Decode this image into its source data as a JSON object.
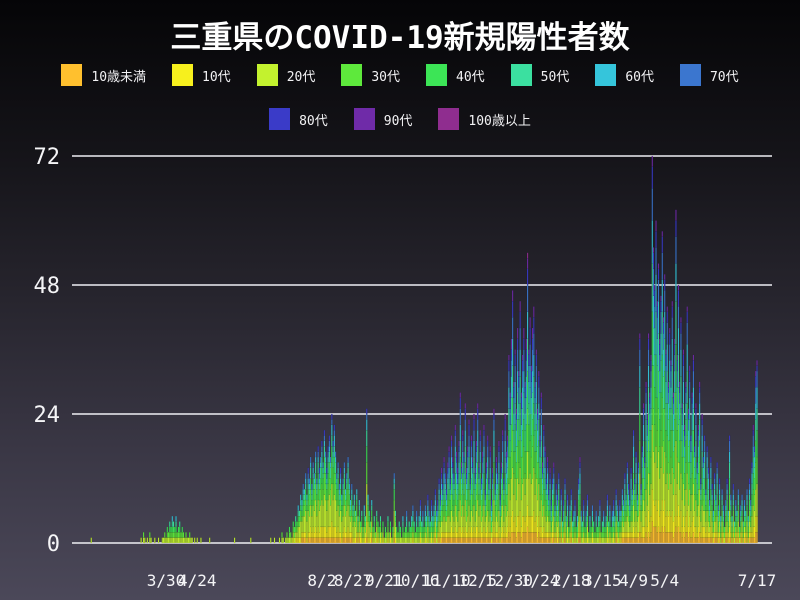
{
  "chart_data": {
    "type": "bar",
    "stacked": true,
    "title": "三重県のCOVID-19新規陽性者数",
    "xlabel": "",
    "ylabel": "",
    "ylim": [
      0,
      72
    ],
    "y_ticks": [
      0,
      24,
      48,
      72
    ],
    "grid": "horizontal-white-lines",
    "legend_position": "top",
    "background": {
      "top": "#050507",
      "bottom": "#4b4859"
    },
    "grid_color": "#efeff4",
    "text_color": "#f5f5f7",
    "series_labels": [
      "10歳未満",
      "10代",
      "20代",
      "30代",
      "40代",
      "50代",
      "60代",
      "70代",
      "80代",
      "90代",
      "100歳以上"
    ],
    "series_colors": [
      "#ffc02e",
      "#f7f01d",
      "#c3f22e",
      "#5ee93c",
      "#3ce556",
      "#3be0a0",
      "#35c5db",
      "#3b76cf",
      "#3a3bc8",
      "#6f2ba8",
      "#8f2d8f"
    ],
    "legend_rows": [
      [
        0,
        1,
        2,
        3,
        4,
        5,
        6,
        7
      ],
      [
        8,
        9,
        10
      ]
    ],
    "x_ticks": [
      {
        "day": 65,
        "label": "3/30"
      },
      {
        "day": 90,
        "label": "4/24"
      },
      {
        "day": 190,
        "label": "8/2"
      },
      {
        "day": 215,
        "label": "8/27"
      },
      {
        "day": 240,
        "label": "9/21"
      },
      {
        "day": 265,
        "label": "10/16"
      },
      {
        "day": 290,
        "label": "11/10"
      },
      {
        "day": 315,
        "label": "12/5"
      },
      {
        "day": 340,
        "label": "12/30"
      },
      {
        "day": 365,
        "label": "1/24"
      },
      {
        "day": 390,
        "label": "2/18"
      },
      {
        "day": 415,
        "label": "3/15"
      },
      {
        "day": 440,
        "label": "4/9"
      },
      {
        "day": 465,
        "label": "5/4"
      },
      {
        "day": 539,
        "label": "7/17"
      }
    ],
    "daily_totals": [
      0,
      0,
      0,
      0,
      0,
      1,
      0,
      0,
      0,
      0,
      0,
      0,
      0,
      0,
      0,
      0,
      0,
      0,
      0,
      0,
      0,
      0,
      0,
      0,
      0,
      0,
      0,
      0,
      0,
      0,
      0,
      0,
      0,
      0,
      0,
      0,
      0,
      0,
      0,
      0,
      0,
      0,
      0,
      0,
      0,
      1,
      0,
      2,
      1,
      0,
      1,
      0,
      2,
      1,
      0,
      0,
      1,
      0,
      0,
      1,
      0,
      0,
      1,
      1,
      2,
      1,
      3,
      2,
      4,
      3,
      5,
      4,
      3,
      5,
      2,
      3,
      4,
      2,
      3,
      2,
      1,
      2,
      1,
      1,
      2,
      1,
      1,
      0,
      1,
      0,
      1,
      0,
      0,
      1,
      0,
      0,
      0,
      0,
      0,
      0,
      1,
      0,
      0,
      0,
      0,
      0,
      0,
      0,
      0,
      0,
      0,
      0,
      0,
      0,
      0,
      0,
      0,
      0,
      0,
      0,
      1,
      0,
      0,
      0,
      0,
      0,
      0,
      0,
      0,
      0,
      0,
      0,
      0,
      1,
      0,
      0,
      0,
      0,
      0,
      0,
      0,
      0,
      0,
      0,
      0,
      0,
      0,
      0,
      0,
      1,
      0,
      0,
      1,
      0,
      0,
      0,
      1,
      0,
      2,
      1,
      0,
      1,
      2,
      1,
      3,
      2,
      1,
      4,
      3,
      5,
      4,
      7,
      6,
      9,
      8,
      11,
      10,
      13,
      9,
      14,
      12,
      16,
      11,
      15,
      13,
      17,
      12,
      18,
      14,
      16,
      19,
      15,
      21,
      17,
      14,
      18,
      20,
      16,
      24,
      19,
      22,
      17,
      13,
      15,
      11,
      14,
      9,
      12,
      15,
      10,
      13,
      16,
      12,
      8,
      11,
      7,
      9,
      6,
      10,
      5,
      8,
      4,
      6,
      3,
      7,
      5,
      25,
      9,
      6,
      4,
      8,
      3,
      5,
      2,
      6,
      4,
      3,
      5,
      2,
      4,
      1,
      3,
      2,
      5,
      2,
      4,
      1,
      3,
      13,
      6,
      3,
      2,
      4,
      3,
      1,
      5,
      2,
      3,
      6,
      2,
      4,
      3,
      5,
      7,
      4,
      2,
      6,
      3,
      5,
      8,
      4,
      6,
      3,
      7,
      5,
      9,
      6,
      4,
      8,
      5,
      7,
      10,
      6,
      8,
      12,
      9,
      14,
      11,
      16,
      13,
      10,
      15,
      18,
      12,
      20,
      16,
      13,
      22,
      17,
      14,
      19,
      28,
      15,
      21,
      17,
      26,
      14,
      18,
      23,
      12,
      20,
      16,
      24,
      14,
      19,
      26,
      15,
      21,
      12,
      17,
      22,
      10,
      15,
      20,
      12,
      18,
      8,
      14,
      25,
      11,
      16,
      13,
      19,
      9,
      15,
      21,
      12,
      24,
      17,
      20,
      35,
      28,
      38,
      47,
      30,
      36,
      25,
      40,
      32,
      45,
      28,
      35,
      40,
      30,
      38,
      54,
      36,
      42,
      33,
      40,
      44,
      30,
      36,
      25,
      32,
      20,
      28,
      15,
      22,
      18,
      12,
      16,
      10,
      14,
      8,
      12,
      15,
      7,
      11,
      9,
      13,
      6,
      10,
      4,
      8,
      12,
      5,
      9,
      3,
      7,
      10,
      4,
      6,
      8,
      3,
      5,
      12,
      16,
      6,
      4,
      8,
      3,
      6,
      9,
      2,
      5,
      3,
      7,
      4,
      2,
      6,
      3,
      5,
      8,
      2,
      4,
      6,
      3,
      5,
      9,
      4,
      7,
      3,
      6,
      8,
      5,
      10,
      7,
      4,
      8,
      6,
      10,
      8,
      13,
      9,
      15,
      11,
      8,
      14,
      10,
      21,
      12,
      17,
      9,
      15,
      39,
      11,
      18,
      26,
      16,
      30,
      24,
      39,
      28,
      35,
      72,
      55,
      48,
      60,
      45,
      52,
      38,
      46,
      58,
      42,
      50,
      36,
      44,
      30,
      40,
      34,
      45,
      28,
      38,
      62,
      35,
      48,
      30,
      42,
      26,
      36,
      22,
      30,
      44,
      25,
      33,
      20,
      28,
      35,
      18,
      26,
      15,
      22,
      30,
      12,
      24,
      16,
      20,
      10,
      18,
      14,
      8,
      16,
      11,
      6,
      13,
      9,
      15,
      7,
      12,
      5,
      10,
      7,
      3,
      8,
      12,
      6,
      20,
      9,
      5,
      11,
      4,
      8,
      6,
      10,
      3,
      7,
      9,
      4,
      8,
      6,
      10,
      5,
      12,
      8,
      15,
      22,
      18,
      32,
      34
    ],
    "age_share_periods": [
      {
        "from": 0,
        "to": 159,
        "shares": [
          0.06,
          0.08,
          0.22,
          0.15,
          0.14,
          0.12,
          0.09,
          0.07,
          0.04,
          0.02,
          0.01
        ]
      },
      {
        "from": 160,
        "to": 249,
        "shares": [
          0.05,
          0.1,
          0.28,
          0.17,
          0.13,
          0.1,
          0.07,
          0.05,
          0.03,
          0.015,
          0.005
        ]
      },
      {
        "from": 250,
        "to": 429,
        "shares": [
          0.05,
          0.08,
          0.18,
          0.14,
          0.13,
          0.12,
          0.1,
          0.09,
          0.06,
          0.04,
          0.01
        ]
      },
      {
        "from": 430,
        "to": 539,
        "shares": [
          0.05,
          0.09,
          0.17,
          0.15,
          0.14,
          0.13,
          0.11,
          0.08,
          0.05,
          0.025,
          0.005
        ]
      }
    ]
  }
}
